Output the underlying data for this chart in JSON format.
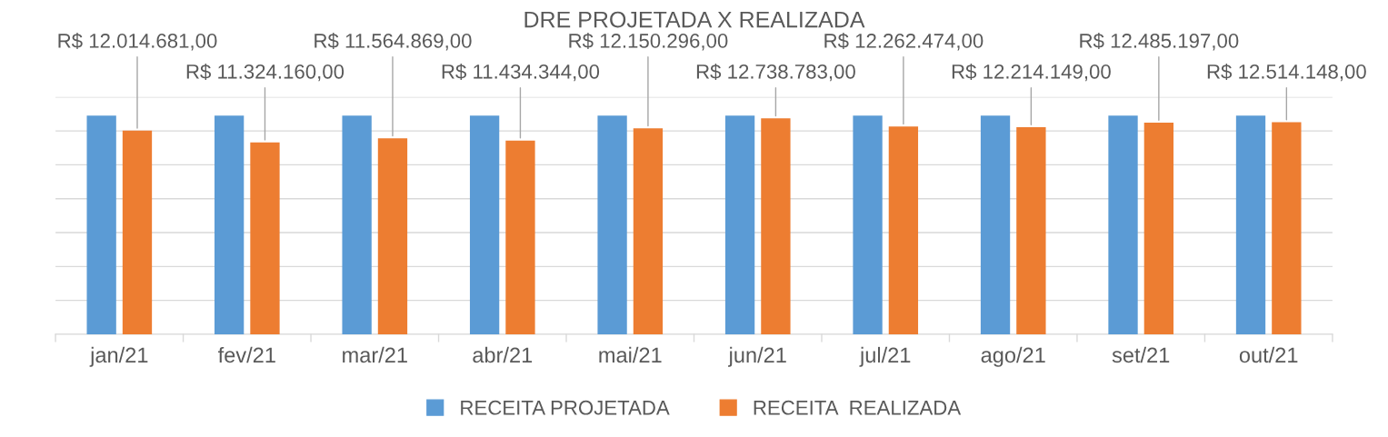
{
  "chart_data": {
    "type": "bar",
    "title": "DRE PROJETADA X REALIZADA",
    "categories": [
      "jan/21",
      "fev/21",
      "mar/21",
      "abr/21",
      "mai/21",
      "jun/21",
      "jul/21",
      "ago/21",
      "set/21",
      "out/21"
    ],
    "series": [
      {
        "name": "RECEITA PROJETADA",
        "color": "#5b9bd5",
        "values": [
          12900000,
          12900000,
          12900000,
          12900000,
          12900000,
          12900000,
          12900000,
          12900000,
          12900000,
          12900000
        ]
      },
      {
        "name": "RECEITA  REALIZADA",
        "color": "#ed7d31",
        "values": [
          12014681,
          11324160,
          11564869,
          11434344,
          12150296,
          12738783,
          12262474,
          12214149,
          12485197,
          12514148
        ],
        "value_labels": [
          "R$ 12.014.681,00",
          "R$ 11.324.160,00",
          "R$ 11.564.869,00",
          "R$ 11.434.344,00",
          "R$ 12.150.296,00",
          "R$ 12.738.783,00",
          "R$ 12.262.474,00",
          "R$ 12.214.149,00",
          "R$ 12.485.197,00",
          "R$ 12.514.148,00"
        ]
      }
    ],
    "ylim": [
      0,
      14000000
    ],
    "yticks": [
      {
        "value": 0,
        "label": null
      },
      {
        "value": 2000000,
        "label": null
      },
      {
        "value": 4000000,
        "label": null
      },
      {
        "value": 6000000,
        "label": null
      },
      {
        "value": 8000000,
        "label": null
      },
      {
        "value": 10000000,
        "label": null
      },
      {
        "value": 12000000,
        "label": null
      },
      {
        "value": 14000000,
        "label": null
      }
    ],
    "grid": "y",
    "legend": "bottom"
  }
}
